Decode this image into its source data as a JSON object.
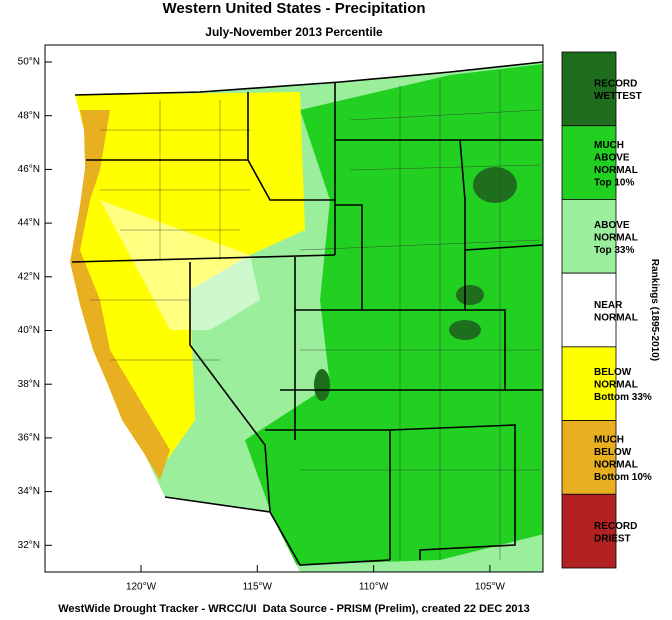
{
  "title": "Western United States - Precipitation",
  "subtitle": "July-November 2013 Percentile",
  "footer": "WestWide Drought Tracker - WRCC/UI  Data Source - PRISM (Prelim), created 22 DEC 2013",
  "legend_title": "Rankings (1895-2010)",
  "lat_labels": [
    "50°N",
    "48°N",
    "46°N",
    "44°N",
    "42°N",
    "40°N",
    "38°N",
    "36°N",
    "34°N",
    "32°N"
  ],
  "lon_labels": [
    "120°W",
    "115°W",
    "110°W",
    "105°W"
  ],
  "legend": [
    {
      "lines": [
        "RECORD",
        "WETTEST"
      ],
      "color": "#1e6e1e"
    },
    {
      "lines": [
        "MUCH",
        "ABOVE",
        "NORMAL",
        "Top 10%"
      ],
      "color": "#22d022"
    },
    {
      "lines": [
        "ABOVE",
        "NORMAL",
        "Top 33%"
      ],
      "color": "#9bee9b"
    },
    {
      "lines": [
        "NEAR",
        "NORMAL"
      ],
      "color": "#ffffff"
    },
    {
      "lines": [
        "BELOW",
        "NORMAL",
        "Bottom 33%"
      ],
      "color": "#ffff00"
    },
    {
      "lines": [
        "MUCH",
        "BELOW",
        "NORMAL",
        "Bottom 10%"
      ],
      "color": "#e8b020"
    },
    {
      "lines": [
        "RECORD",
        "DRIEST"
      ],
      "color": "#b22222"
    }
  ]
}
